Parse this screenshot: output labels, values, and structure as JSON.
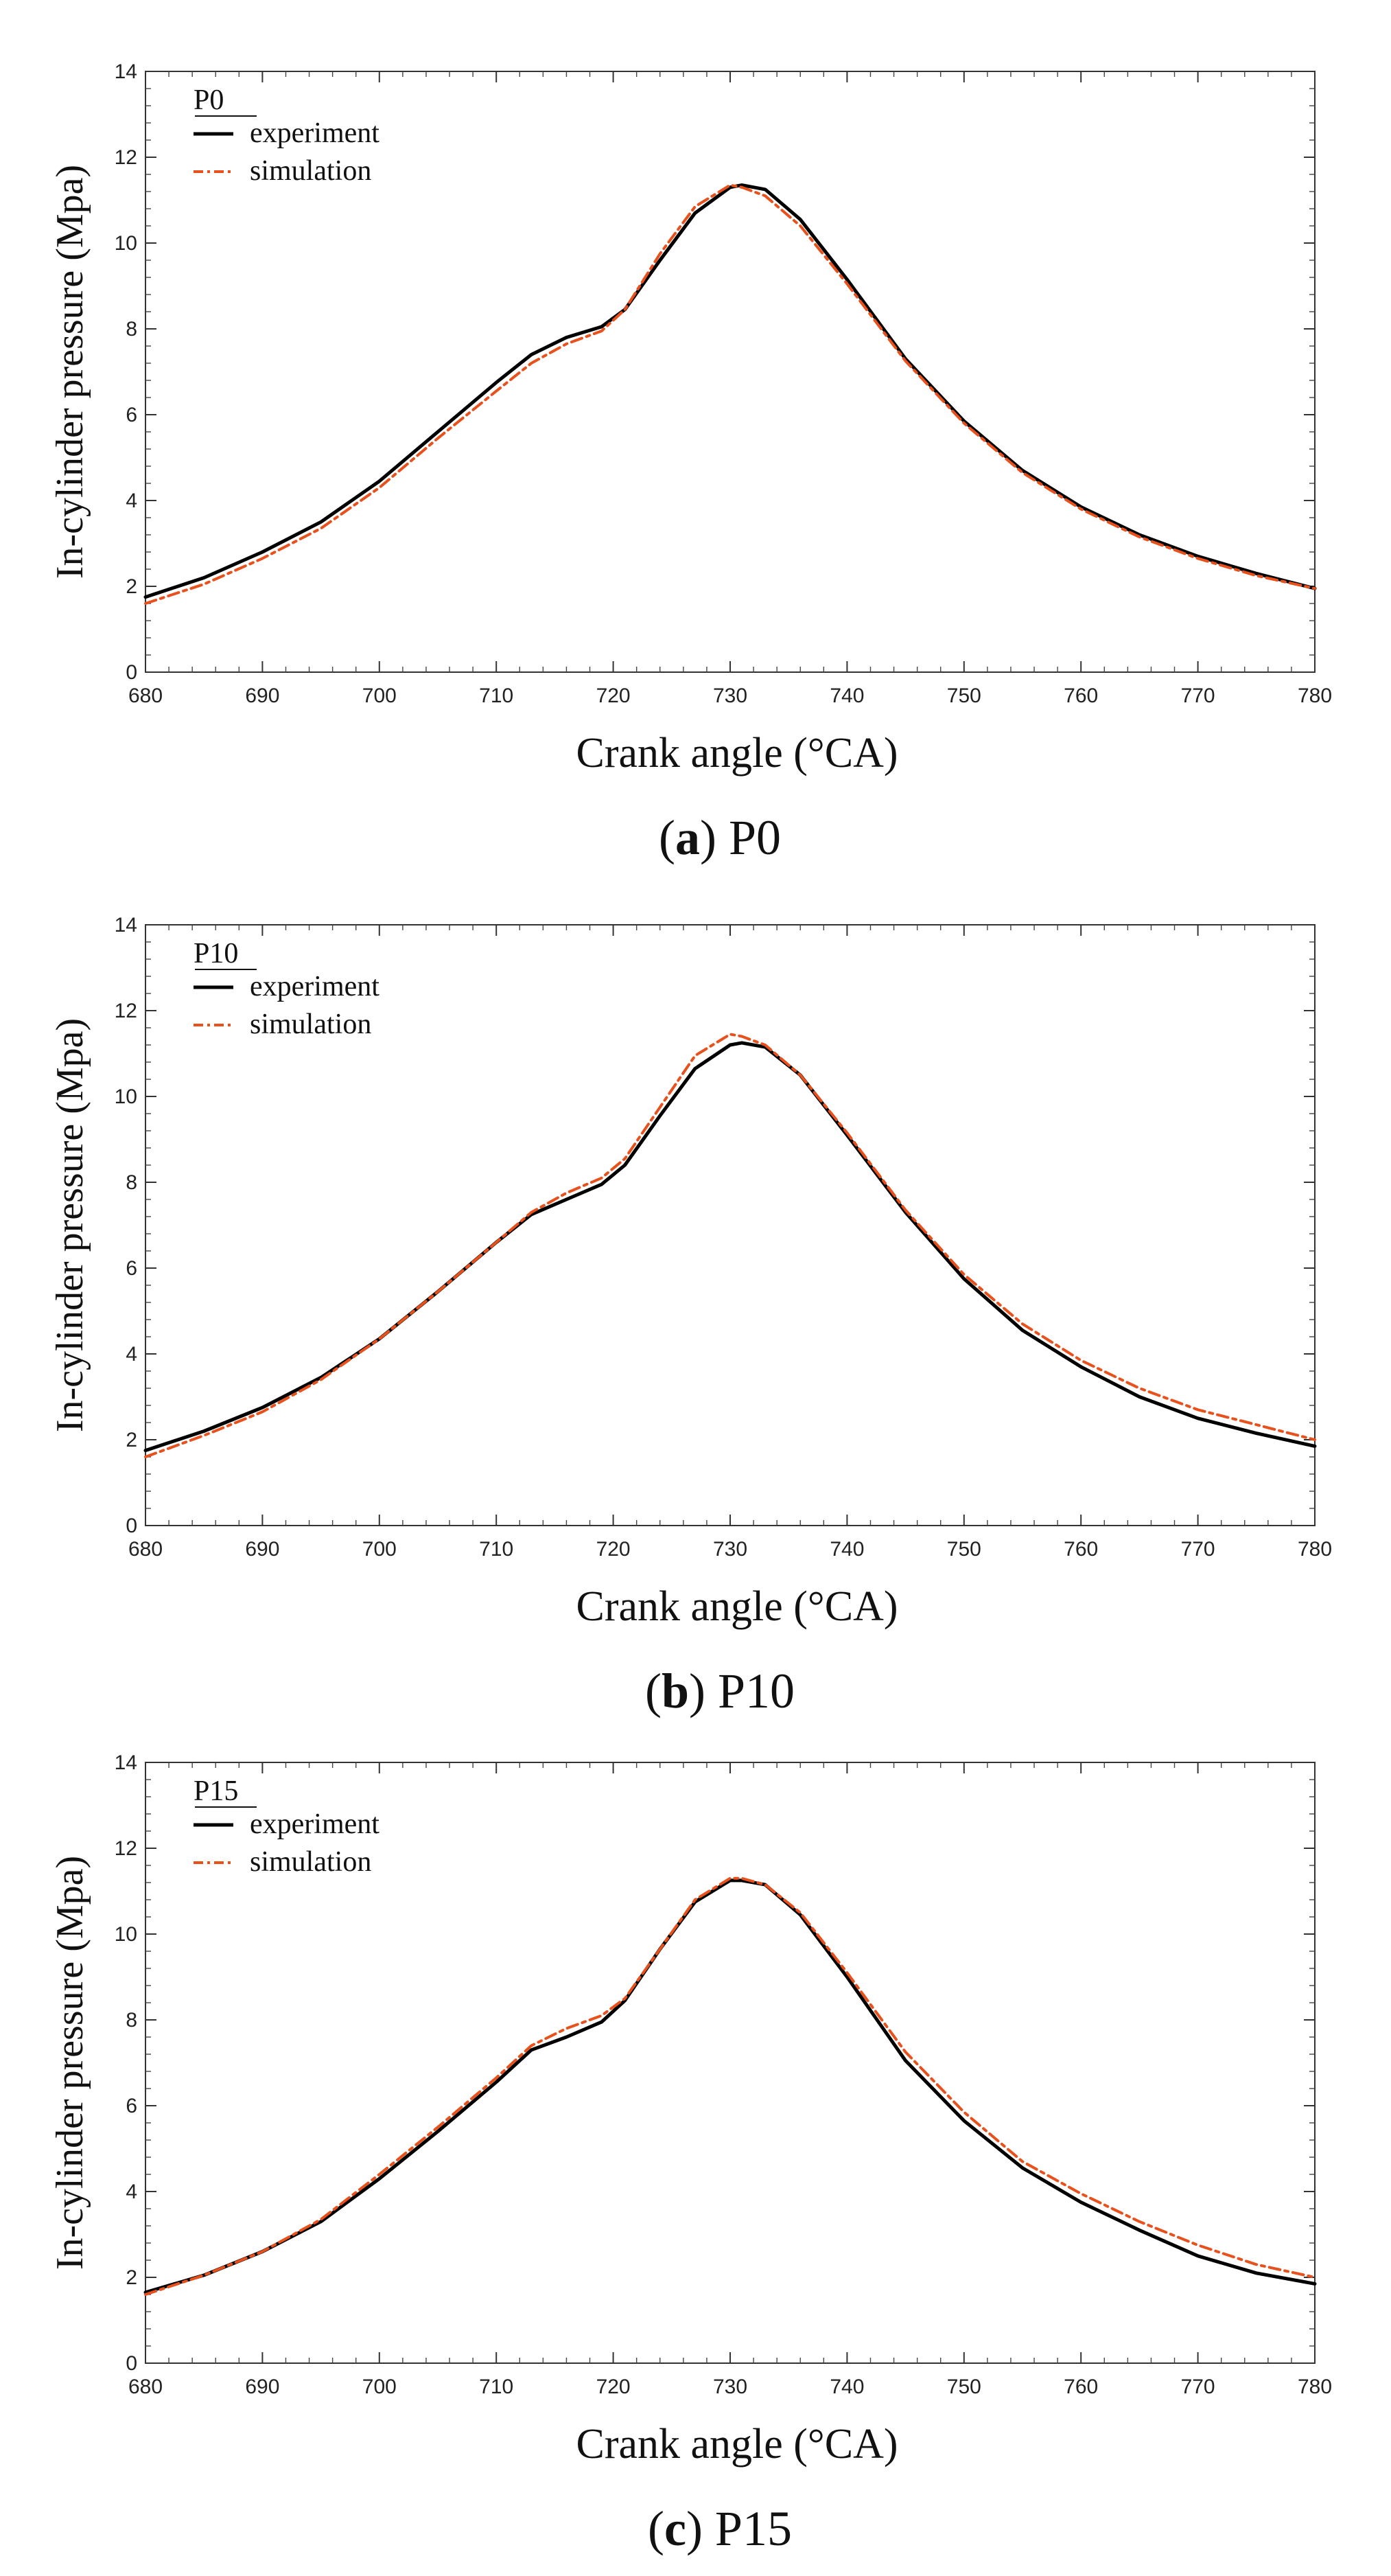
{
  "chart_data": [
    {
      "type": "line",
      "panel_id": "a",
      "caption_letter": "a",
      "caption_name": "P0",
      "legend_title": "P0",
      "xlabel": "Crank angle (°CA)",
      "ylabel": "In-cylinder pressure (Mpa)",
      "xlim": [
        680,
        780
      ],
      "ylim": [
        0,
        14
      ],
      "xticks": [
        680,
        690,
        700,
        710,
        720,
        730,
        740,
        750,
        760,
        770,
        780
      ],
      "yticks": [
        0,
        2,
        4,
        6,
        8,
        10,
        12,
        14
      ],
      "grid": false,
      "legend_position": "top-left",
      "series": [
        {
          "name": "experiment",
          "color": "#000000",
          "style": "solid",
          "x": [
            680,
            685,
            690,
            695,
            700,
            705,
            710,
            713,
            716,
            719,
            721,
            724,
            727,
            730,
            731,
            733,
            736,
            740,
            745,
            750,
            755,
            760,
            765,
            770,
            775,
            780
          ],
          "y": [
            1.75,
            2.2,
            2.8,
            3.5,
            4.45,
            5.6,
            6.75,
            7.4,
            7.8,
            8.05,
            8.45,
            9.6,
            10.7,
            11.3,
            11.35,
            11.25,
            10.55,
            9.15,
            7.3,
            5.85,
            4.7,
            3.85,
            3.2,
            2.7,
            2.3,
            1.95
          ]
        },
        {
          "name": "simulation",
          "color": "#e8501c",
          "style": "dashed",
          "x": [
            680,
            685,
            690,
            695,
            700,
            705,
            710,
            713,
            716,
            719,
            721,
            724,
            727,
            730,
            731,
            733,
            736,
            740,
            745,
            750,
            755,
            760,
            765,
            770,
            775,
            780
          ],
          "y": [
            1.6,
            2.05,
            2.65,
            3.35,
            4.3,
            5.45,
            6.55,
            7.2,
            7.65,
            7.95,
            8.45,
            9.75,
            10.85,
            11.35,
            11.3,
            11.1,
            10.4,
            9.05,
            7.25,
            5.8,
            4.65,
            3.8,
            3.15,
            2.65,
            2.25,
            1.95
          ]
        }
      ]
    },
    {
      "type": "line",
      "panel_id": "b",
      "caption_letter": "b",
      "caption_name": "P10",
      "legend_title": "P10",
      "xlabel": "Crank angle (°CA)",
      "ylabel": "In-cylinder pressure (Mpa)",
      "xlim": [
        680,
        780
      ],
      "ylim": [
        0,
        14
      ],
      "xticks": [
        680,
        690,
        700,
        710,
        720,
        730,
        740,
        750,
        760,
        770,
        780
      ],
      "yticks": [
        0,
        2,
        4,
        6,
        8,
        10,
        12,
        14
      ],
      "grid": false,
      "legend_position": "top-left",
      "series": [
        {
          "name": "experiment",
          "color": "#000000",
          "style": "solid",
          "x": [
            680,
            685,
            690,
            695,
            700,
            705,
            710,
            713,
            716,
            719,
            721,
            724,
            727,
            730,
            731,
            733,
            736,
            740,
            745,
            750,
            755,
            760,
            765,
            770,
            775,
            780
          ],
          "y": [
            1.75,
            2.2,
            2.75,
            3.45,
            4.35,
            5.45,
            6.6,
            7.25,
            7.6,
            7.95,
            8.4,
            9.55,
            10.65,
            11.2,
            11.25,
            11.15,
            10.5,
            9.1,
            7.3,
            5.75,
            4.55,
            3.7,
            3.0,
            2.5,
            2.15,
            1.85
          ]
        },
        {
          "name": "simulation",
          "color": "#e8501c",
          "style": "dashed",
          "x": [
            680,
            685,
            690,
            695,
            700,
            705,
            710,
            713,
            716,
            719,
            721,
            724,
            727,
            730,
            731,
            733,
            736,
            740,
            745,
            750,
            755,
            760,
            765,
            770,
            775,
            780
          ],
          "y": [
            1.6,
            2.1,
            2.65,
            3.4,
            4.35,
            5.45,
            6.6,
            7.3,
            7.75,
            8.1,
            8.55,
            9.75,
            10.95,
            11.45,
            11.4,
            11.2,
            10.5,
            9.15,
            7.35,
            5.85,
            4.7,
            3.85,
            3.2,
            2.7,
            2.35,
            2.0
          ]
        }
      ]
    },
    {
      "type": "line",
      "panel_id": "c",
      "caption_letter": "c",
      "caption_name": "P15",
      "legend_title": "P15",
      "xlabel": "Crank angle (°CA)",
      "ylabel": "In-cylinder pressure (Mpa)",
      "xlim": [
        680,
        780
      ],
      "ylim": [
        0,
        14
      ],
      "xticks": [
        680,
        690,
        700,
        710,
        720,
        730,
        740,
        750,
        760,
        770,
        780
      ],
      "yticks": [
        0,
        2,
        4,
        6,
        8,
        10,
        12,
        14
      ],
      "grid": false,
      "legend_position": "top-left",
      "series": [
        {
          "name": "experiment",
          "color": "#000000",
          "style": "solid",
          "x": [
            680,
            685,
            690,
            695,
            700,
            705,
            710,
            713,
            716,
            719,
            721,
            724,
            727,
            730,
            731,
            733,
            736,
            740,
            745,
            750,
            755,
            760,
            765,
            770,
            775,
            780
          ],
          "y": [
            1.65,
            2.05,
            2.6,
            3.3,
            4.3,
            5.4,
            6.55,
            7.3,
            7.6,
            7.95,
            8.45,
            9.65,
            10.75,
            11.25,
            11.25,
            11.15,
            10.45,
            9.0,
            7.05,
            5.65,
            4.55,
            3.75,
            3.1,
            2.5,
            2.1,
            1.85
          ]
        },
        {
          "name": "simulation",
          "color": "#e8501c",
          "style": "dashed",
          "x": [
            680,
            685,
            690,
            695,
            700,
            705,
            710,
            713,
            716,
            719,
            721,
            724,
            727,
            730,
            731,
            733,
            736,
            740,
            745,
            750,
            755,
            760,
            765,
            770,
            775,
            780
          ],
          "y": [
            1.6,
            2.05,
            2.6,
            3.35,
            4.4,
            5.5,
            6.65,
            7.4,
            7.8,
            8.1,
            8.5,
            9.65,
            10.8,
            11.3,
            11.3,
            11.15,
            10.5,
            9.1,
            7.25,
            5.85,
            4.7,
            3.95,
            3.3,
            2.75,
            2.3,
            2.0
          ]
        }
      ]
    }
  ]
}
